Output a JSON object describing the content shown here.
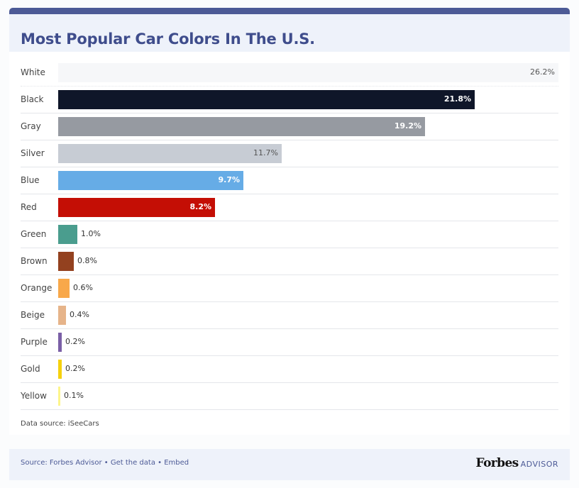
{
  "title": "Most Popular Car Colors In The U.S.",
  "source_note": "Data source: iSeeCars",
  "footer": {
    "prefix": "Source: ",
    "source_link": "Forbes Advisor",
    "sep1": " • ",
    "data_link": "Get the data",
    "sep2": " • ",
    "embed_link": "Embed",
    "brand_forbes": "Forbes",
    "brand_advisor": "ADVISOR"
  },
  "chart_data": {
    "type": "bar",
    "orientation": "horizontal",
    "title": "Most Popular Car Colors In The U.S.",
    "xlabel": "",
    "ylabel": "",
    "xlim": [
      0,
      26.2
    ],
    "grid": false,
    "categories": [
      "White",
      "Black",
      "Gray",
      "Silver",
      "Blue",
      "Red",
      "Green",
      "Brown",
      "Orange",
      "Beige",
      "Purple",
      "Gold",
      "Yellow"
    ],
    "values": [
      26.2,
      21.8,
      19.2,
      11.7,
      9.7,
      8.2,
      1.0,
      0.8,
      0.6,
      0.4,
      0.2,
      0.2,
      0.1
    ],
    "labels": [
      "26.2%",
      "21.8%",
      "19.2%",
      "11.7%",
      "9.7%",
      "8.2%",
      "1.0%",
      "0.8%",
      "0.6%",
      "0.4%",
      "0.2%",
      "0.2%",
      "0.1%"
    ],
    "colors": [
      "#f6f7f9",
      "#0f1629",
      "#969aa1",
      "#c7ccd4",
      "#66ace6",
      "#c40e05",
      "#4a9d8e",
      "#93411f",
      "#f8a84a",
      "#e6b48a",
      "#7a5fa6",
      "#f5d10d",
      "#fdf58a"
    ]
  }
}
